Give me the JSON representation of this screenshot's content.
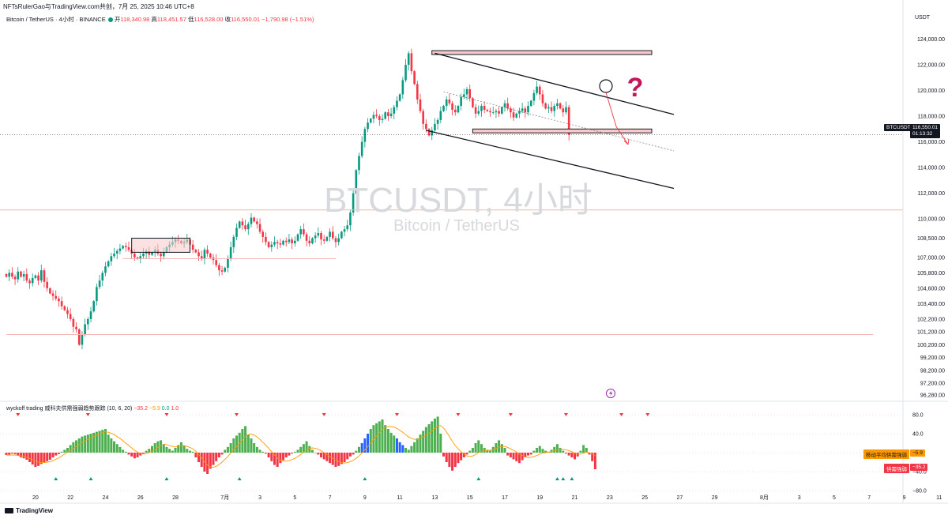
{
  "header": {
    "publish_line": "NFTsRulerGao与TradingView.com共创，7月 25, 2025 10:46 UTC+8"
  },
  "symbol": {
    "name": "Bitcoin / TetherUS · 4小时 · BINANCE",
    "open_label": "开",
    "open": "118,340.98",
    "high_label": "高",
    "high": "118,451.57",
    "low_label": "低",
    "low": "116,528.00",
    "close_label": "收",
    "close": "116,550.01",
    "change": "−1,790.98 (−1.51%)",
    "currency": "USDT"
  },
  "watermark": {
    "title": "BTCUSDT, 4小时",
    "subtitle": "Bitcoin / TetherUS"
  },
  "price_tags": {
    "symbol": "BTCUSDT",
    "price": "116,550.01",
    "countdown": "01:13:32"
  },
  "indicator": {
    "name": "wyckoff trading 威科夫供需强弱趋势跟踪 (10, 6, 20)",
    "v1": "−35.2",
    "v2": "−5.9",
    "v3": "0.0",
    "v4": "1.0",
    "ma_label": "移动平均供需强弱",
    "ma_value": "−5.9",
    "sd_label": "供需强弱",
    "sd_value": "−35.2"
  },
  "brand": "TradingView",
  "colors": {
    "up": "#089981",
    "down": "#f23645",
    "hist_up": "#4caf50",
    "hist_down": "#f23645",
    "hist_blue": "#2962ff",
    "ma": "#ff9800",
    "box_fill": "#f8c9c9",
    "question": "#c2185b"
  },
  "chart_data": [
    {
      "type": "candlestick",
      "y_axis": {
        "ticks": [
          124000,
          122000,
          120000,
          118000,
          116000,
          114000,
          112000,
          110000,
          108500,
          107000,
          105800,
          104600,
          103400,
          102200,
          101200,
          100200,
          99200,
          98200,
          97200,
          96280
        ],
        "tick_labels": [
          "124,000.00",
          "122,000.00",
          "120,000.00",
          "118,000.00",
          "116,000.00",
          "114,000.00",
          "112,000.00",
          "110,000.00",
          "108,500.00",
          "107,000.00",
          "105,800.00",
          "104,600.00",
          "103,400.00",
          "102,200.00",
          "101,200.00",
          "100,200.00",
          "99,200.00",
          "98,200.00",
          "97,200.00",
          "96,280.00"
        ],
        "range": [
          95800,
          125200
        ]
      },
      "x_axis": {
        "ticks": [
          {
            "label": "20",
            "slot": 10
          },
          {
            "label": "22",
            "slot": 22
          },
          {
            "label": "24",
            "slot": 34
          },
          {
            "label": "26",
            "slot": 46
          },
          {
            "label": "28",
            "slot": 58
          },
          {
            "label": "7月",
            "slot": 75
          },
          {
            "label": "3",
            "slot": 87
          },
          {
            "label": "5",
            "slot": 99
          },
          {
            "label": "7",
            "slot": 111
          },
          {
            "label": "9",
            "slot": 123
          },
          {
            "label": "11",
            "slot": 135
          },
          {
            "label": "13",
            "slot": 147
          },
          {
            "label": "15",
            "slot": 159
          },
          {
            "label": "17",
            "slot": 171
          },
          {
            "label": "19",
            "slot": 183
          },
          {
            "label": "21",
            "slot": 195
          },
          {
            "label": "23",
            "slot": 207
          },
          {
            "label": "25",
            "slot": 219
          },
          {
            "label": "27",
            "slot": 231
          },
          {
            "label": "29",
            "slot": 243
          },
          {
            "label": "8月",
            "slot": 260
          },
          {
            "label": "3",
            "slot": 272
          },
          {
            "label": "5",
            "slot": 284
          },
          {
            "label": "7",
            "slot": 296
          },
          {
            "label": "9",
            "slot": 308
          },
          {
            "label": "11",
            "slot": 320
          }
        ]
      },
      "close_path": [
        105500,
        105800,
        105500,
        105300,
        105900,
        105500,
        105700,
        105200,
        105000,
        105400,
        105600,
        105200,
        106000,
        105100,
        104600,
        104200,
        104000,
        103800,
        103600,
        103200,
        102900,
        102600,
        102200,
        101600,
        101400,
        100200,
        101000,
        101800,
        102200,
        102800,
        103600,
        104700,
        105200,
        105800,
        106300,
        106700,
        107100,
        107300,
        107500,
        107700,
        107900,
        107800,
        107600,
        107300,
        107000,
        106900,
        107100,
        107300,
        107500,
        107200,
        107400,
        107600,
        107300,
        107100,
        107400,
        107800,
        108000,
        108200,
        108400,
        108300,
        108100,
        108200,
        108400,
        108000,
        107600,
        107400,
        107100,
        106900,
        107600,
        107300,
        107000,
        106800,
        106400,
        106000,
        105900,
        106200,
        106900,
        107800,
        108600,
        109300,
        109800,
        109500,
        109200,
        109600,
        110100,
        109800,
        109600,
        109000,
        108600,
        108200,
        107800,
        108000,
        108200,
        108100,
        108000,
        108300,
        108200,
        108400,
        108100,
        108300,
        108800,
        109200,
        108800,
        108300,
        108100,
        108500,
        108700,
        108900,
        108400,
        108300,
        108600,
        109000,
        108500,
        108200,
        108500,
        109000,
        109200,
        109500,
        110500,
        112000,
        113800,
        114900,
        116000,
        117000,
        117500,
        117800,
        118100,
        118000,
        117700,
        117800,
        118300,
        118000,
        118200,
        118700,
        119200,
        119700,
        120800,
        122000,
        122900,
        121500,
        120500,
        119300,
        118400,
        117400,
        117000,
        116500,
        116900,
        117400,
        117700,
        118400,
        118800,
        119300,
        119000,
        118500,
        118300,
        118800,
        119500,
        119700,
        120100,
        119400,
        118700,
        118200,
        118400,
        118800,
        118500,
        118400,
        118300,
        118300,
        118400,
        118200,
        118700,
        119000,
        118600,
        118300,
        117900,
        118200,
        118400,
        118600,
        118300,
        118800,
        119200,
        119800,
        120300,
        119700,
        119000,
        118600,
        118700,
        118400,
        118800,
        119000,
        118600,
        118300,
        118700,
        116550
      ],
      "annotations": {
        "resistance_zone": [
          122800,
          123100
        ],
        "support_zone": [
          116700,
          117000
        ],
        "channel_upper": [
          [
            147,
            122900
          ],
          [
            221,
            118600
          ]
        ],
        "channel_lower": [
          [
            144,
            116900
          ],
          [
            221,
            112800
          ]
        ],
        "horizontal_lines": [
          110700,
          101000,
          106900
        ],
        "consolidation_box": [
          107400,
          108500
        ],
        "current_price": 116550
      }
    },
    {
      "type": "bar",
      "name": "供需强弱",
      "y_axis": {
        "ticks": [
          80,
          40,
          0,
          -40,
          -80
        ],
        "tick_labels": [
          "80.0",
          "40.0",
          "0",
          "−40.0",
          "−80.0"
        ],
        "range": [
          -90,
          90
        ]
      },
      "values": [
        -5,
        -4,
        -2,
        -3,
        -6,
        -10,
        -12,
        -15,
        -20,
        -25,
        -30,
        -28,
        -24,
        -20,
        -18,
        -15,
        -10,
        -6,
        -3,
        2,
        6,
        10,
        16,
        22,
        26,
        30,
        34,
        36,
        38,
        40,
        42,
        44,
        46,
        48,
        50,
        38,
        30,
        24,
        18,
        12,
        6,
        2,
        -4,
        -8,
        -12,
        -10,
        -6,
        -2,
        4,
        8,
        14,
        20,
        24,
        26,
        18,
        12,
        8,
        4,
        10,
        16,
        22,
        14,
        8,
        4,
        2,
        -10,
        -20,
        -30,
        -40,
        -45,
        -34,
        -26,
        -18,
        -10,
        -4,
        6,
        12,
        20,
        30,
        36,
        42,
        50,
        56,
        38,
        30,
        20,
        12,
        6,
        2,
        -2,
        -10,
        -18,
        -26,
        -30,
        -22,
        -16,
        -10,
        -6,
        -2,
        2,
        6,
        12,
        18,
        24,
        14,
        6,
        0,
        -4,
        -10,
        -14,
        -18,
        -22,
        -26,
        -30,
        -28,
        -24,
        -20,
        -14,
        -8,
        -4,
        4,
        12,
        20,
        30,
        40,
        50,
        58,
        62,
        66,
        70,
        58,
        50,
        42,
        36,
        30,
        22,
        16,
        10,
        6,
        14,
        22,
        30,
        38,
        46,
        54,
        60,
        66,
        72,
        76,
        40,
        -8,
        -20,
        -30,
        -38,
        -30,
        -22,
        -16,
        -10,
        -4,
        4,
        10,
        20,
        26,
        18,
        10,
        6,
        4,
        12,
        20,
        26,
        18,
        10,
        -6,
        -10,
        -14,
        -18,
        -22,
        -16,
        -10,
        -6,
        -4,
        4,
        10,
        14,
        8,
        4,
        2,
        6,
        12,
        18,
        10,
        4,
        -2,
        -6,
        -10,
        -14,
        -8,
        4,
        16,
        10,
        -4,
        -18,
        -35
      ],
      "ma": [
        -5,
        -5,
        -5,
        -5,
        -6,
        -7,
        -8,
        -10,
        -12,
        -15,
        -18,
        -20,
        -21,
        -21,
        -20,
        -19,
        -17,
        -14,
        -11,
        -7,
        -3,
        1,
        5,
        9,
        13,
        17,
        21,
        25,
        28,
        31,
        34,
        37,
        40,
        42,
        44,
        43,
        41,
        38,
        34,
        30,
        25,
        20,
        15,
        10,
        5,
        1,
        -2,
        -3,
        -2,
        0,
        3,
        7,
        11,
        15,
        17,
        17,
        15,
        13,
        12,
        13,
        15,
        15,
        13,
        11,
        8,
        3,
        -4,
        -11,
        -19,
        -26,
        -30,
        -31,
        -29,
        -25,
        -20,
        -14,
        -8,
        -1,
        6,
        13,
        20,
        27,
        34,
        38,
        39,
        37,
        33,
        28,
        22,
        16,
        9,
        2,
        -5,
        -12,
        -16,
        -18,
        -18,
        -17,
        -15,
        -12,
        -8,
        -4,
        1,
        6,
        9,
        10,
        9,
        7,
        4,
        0,
        -4,
        -8,
        -12,
        -16,
        -19,
        -21,
        -22,
        -21,
        -19,
        -16,
        -12,
        -7,
        -1,
        6,
        13,
        20,
        28,
        35,
        42,
        49,
        53,
        55,
        55,
        54,
        51,
        47,
        43,
        38,
        33,
        30,
        28,
        28,
        30,
        33,
        37,
        41,
        46,
        51,
        56,
        57,
        52,
        44,
        34,
        24,
        15,
        8,
        2,
        -3,
        -7,
        -8,
        -7,
        -4,
        0,
        3,
        4,
        5,
        5,
        7,
        9,
        12,
        13,
        13,
        11,
        8,
        5,
        1,
        -3,
        -6,
        -9,
        -10,
        -10,
        -8,
        -6,
        -3,
        -1,
        0,
        1,
        2,
        4,
        6,
        7,
        7,
        6,
        4,
        2,
        -1,
        -3,
        -3,
        -1,
        1,
        0,
        -3,
        -6
      ]
    }
  ]
}
